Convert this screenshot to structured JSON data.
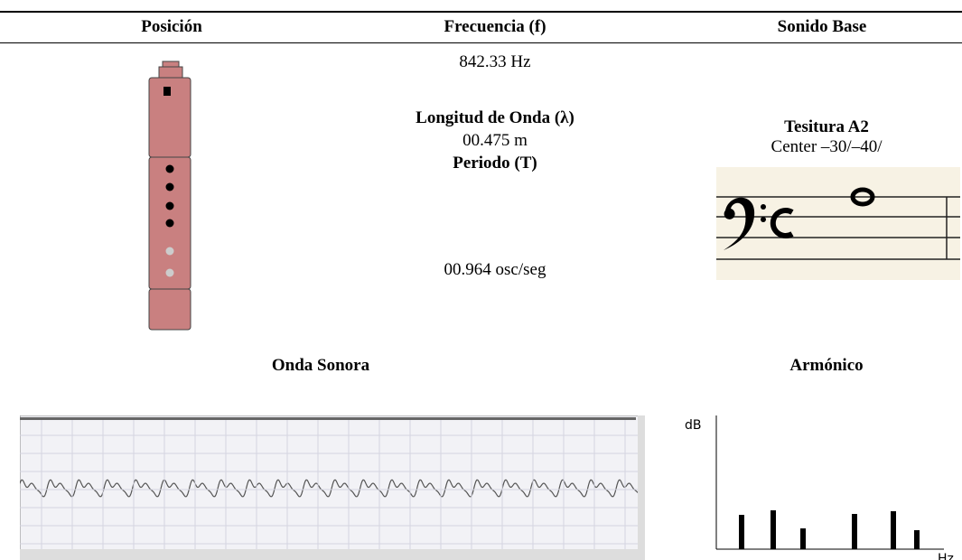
{
  "header": {
    "columns": [
      "Posición",
      "Frecuencia (f)",
      "Sonido Base"
    ]
  },
  "frequency": {
    "value": "842.33 Hz",
    "wavelength_label": "Longitud de Onda (λ)",
    "wavelength": "00.475 m",
    "period_label": "Periodo (T)",
    "period": "00.964 osc/seg"
  },
  "base_sound": {
    "title": "Tesitura A2",
    "subtitle": "Center –30/–40/"
  },
  "sections": {
    "wave": "Onda Sonora",
    "harmonic": "Armónico"
  },
  "harmonic_axes": {
    "y": "dB",
    "x": "Hz"
  }
}
